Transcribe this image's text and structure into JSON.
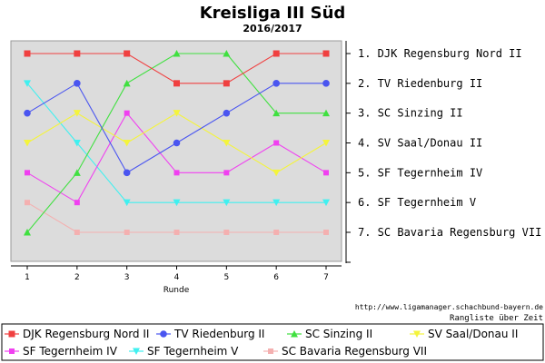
{
  "title": "Kreisliga III Süd",
  "subtitle": "2016/2017",
  "source_url": "http://www.ligamanager.schachbund-bayern.de",
  "caption": "Rangliste über Zeit",
  "chart_data": {
    "type": "line",
    "title": "Kreisliga III Süd",
    "subtitle": "2016/2017",
    "xlabel": "Runde",
    "ylabel": "",
    "x": [
      1,
      2,
      3,
      4,
      5,
      6,
      7
    ],
    "xlim": [
      1,
      7
    ],
    "ylim": [
      1,
      7
    ],
    "y_inverted": true,
    "grid": false,
    "legend_position": "bottom",
    "final_ranking": [
      "1. DJK Regensburg Nord II",
      "2. TV Riedenburg II",
      "3. SC Sinzing II",
      "4. SV Saal/Donau II",
      "5. SF Tegernheim IV",
      "6. SF Tegernheim V",
      "7. SC Bavaria Regensburg VII"
    ],
    "series": [
      {
        "name": "DJK Regensburg Nord II",
        "color": "#f04040",
        "marker": "square",
        "values": [
          1,
          1,
          1,
          2,
          2,
          1,
          1
        ]
      },
      {
        "name": "TV Riedenburg II",
        "color": "#4a55f0",
        "marker": "circle",
        "values": [
          3,
          2,
          5,
          4,
          3,
          2,
          2
        ]
      },
      {
        "name": "SC Sinzing II",
        "color": "#40e040",
        "marker": "triangle-up",
        "values": [
          7,
          5,
          2,
          1,
          1,
          3,
          3
        ]
      },
      {
        "name": "SV Saal/Donau II",
        "color": "#f4f43c",
        "marker": "triangle-down",
        "values": [
          4,
          3,
          4,
          3,
          4,
          5,
          4
        ]
      },
      {
        "name": "SF Tegernheim IV",
        "color": "#f040f0",
        "marker": "square-small",
        "values": [
          5,
          6,
          3,
          5,
          5,
          4,
          5
        ]
      },
      {
        "name": "SF Tegernheim V",
        "color": "#40f0f0",
        "marker": "triangle-down",
        "values": [
          2,
          4,
          6,
          6,
          6,
          6,
          6
        ]
      },
      {
        "name": "SC Bavaria Regensburg VII",
        "color": "#f4b0b0",
        "marker": "square-small",
        "values": [
          6,
          7,
          7,
          7,
          7,
          7,
          7
        ]
      }
    ]
  }
}
